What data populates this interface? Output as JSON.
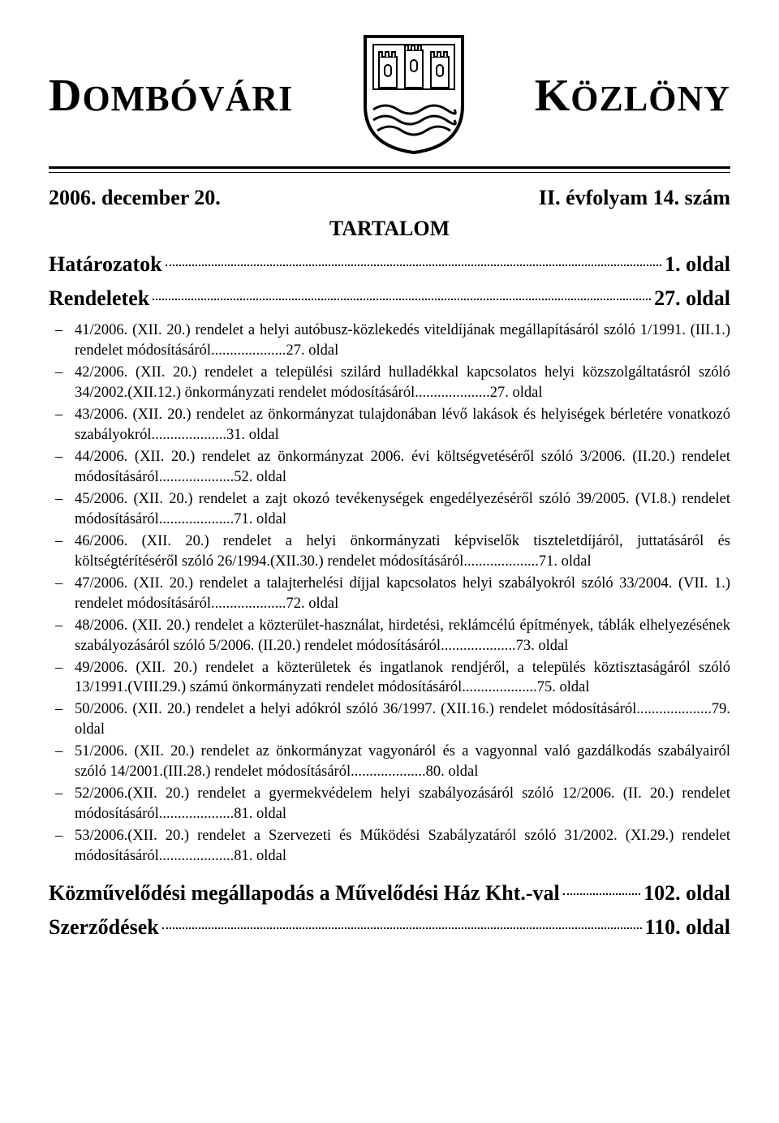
{
  "masthead": {
    "left": "OMBÓVÁRI",
    "left_cap": "D",
    "right": "ÖZLÖNY",
    "right_cap": "K"
  },
  "dateline": {
    "left": "2006. december 20.",
    "right": "II. évfolyam 14. szám"
  },
  "tartalom": "TARTALOM",
  "sections": {
    "hatarozatok": {
      "label": "Határozatok",
      "page": "1. oldal"
    },
    "rendeletek": {
      "label": "Rendeletek",
      "page": "27. oldal"
    },
    "kozmuvelodesi": {
      "label": "Közművelődési megállapodás a Művelődési Ház Kht.-val",
      "page": "102. oldal"
    },
    "szerzodesek": {
      "label": "Szerződések",
      "page": "110. oldal"
    }
  },
  "toc": [
    {
      "text": "41/2006. (XII. 20.) rendelet a helyi autóbusz-közlekedés viteldíjának megállapításáról szóló 1/1991. (III.1.) rendelet módosításáról",
      "page": "27. oldal"
    },
    {
      "text": "42/2006. (XII. 20.) rendelet a települési szilárd hulladékkal kapcsolatos helyi közszolgáltatásról szóló 34/2002.(XII.12.) önkormányzati rendelet módosításáról",
      "page": "27. oldal"
    },
    {
      "text": "43/2006. (XII. 20.) rendelet az önkormányzat tulajdonában lévő lakások és helyiségek bérletére vonatkozó szabályokról",
      "page": "31. oldal"
    },
    {
      "text": "44/2006. (XII. 20.) rendelet az önkormányzat 2006. évi költségvetéséről szóló 3/2006. (II.20.) rendelet módosításáról",
      "page": "52. oldal"
    },
    {
      "text": "45/2006. (XII. 20.) rendelet a zajt okozó tevékenységek engedélyezéséről szóló 39/2005. (VI.8.) rendelet módosításáról",
      "page": "71. oldal"
    },
    {
      "text": "46/2006. (XII. 20.) rendelet a helyi önkormányzati képviselők tiszteletdíjáról, juttatásáról és költségtérítéséről szóló 26/1994.(XII.30.) rendelet módosításáról",
      "page": "71. oldal"
    },
    {
      "text": "47/2006. (XII. 20.) rendelet a talajterhelési díjjal kapcsolatos helyi szabályokról szóló 33/2004. (VII. 1.) rendelet módosításáról",
      "page": "72. oldal"
    },
    {
      "text": "48/2006. (XII. 20.) rendelet a közterület-használat, hirdetési, reklámcélú építmények, táblák elhelyezésének szabályozásáról szóló 5/2006. (II.20.) rendelet módosításáról",
      "page": "73. oldal"
    },
    {
      "text": "49/2006. (XII. 20.) rendelet a közterületek és ingatlanok rendjéről, a település köztisztaságáról szóló 13/1991.(VIII.29.) számú önkormányzati rendelet módosításáról",
      "page": "75. oldal"
    },
    {
      "text": "50/2006. (XII. 20.) rendelet a helyi adókról szóló 36/1997. (XII.16.) rendelet módosításáról",
      "page": "79. oldal"
    },
    {
      "text": "51/2006. (XII. 20.) rendelet az önkormányzat vagyonáról és a vagyonnal való gazdálkodás szabályairól szóló 14/2001.(III.28.) rendelet módosításáról",
      "page": "80. oldal"
    },
    {
      "text": "52/2006.(XII. 20.) rendelet a gyermekvédelem helyi szabályozásáról szóló 12/2006. (II. 20.) rendelet módosításáról",
      "page": "81. oldal"
    },
    {
      "text": "53/2006.(XII. 20.) rendelet a Szervezeti és Működési Szabályzatáról szóló 31/2002. (XI.29.) rendelet módosításáról",
      "page": "81. oldal"
    }
  ]
}
